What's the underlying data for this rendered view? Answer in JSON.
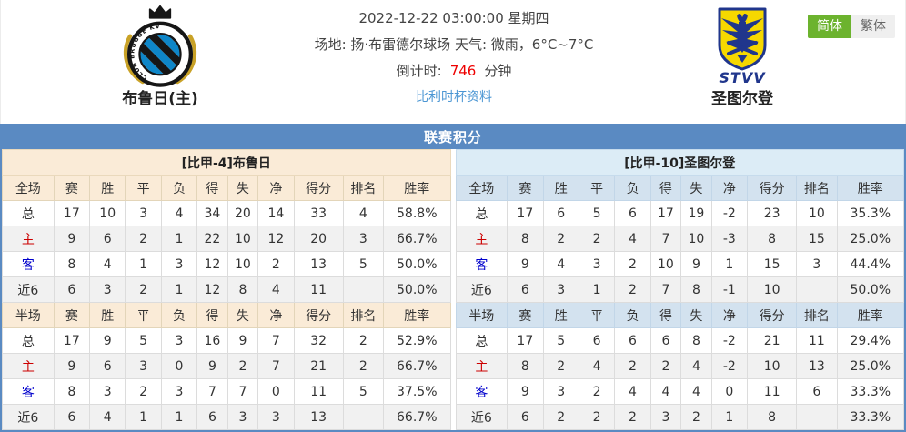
{
  "lang_switch": {
    "simplified": "简体",
    "traditional": "繁体"
  },
  "header": {
    "home": {
      "name": "布鲁日(主)"
    },
    "away": {
      "name": "圣图尔登"
    },
    "match_time": "2022-12-22 03:00:00 星期四",
    "venue_weather": "场地: 扬·布雷德尔球场 天气: 微雨，6°C~7°C",
    "countdown_label": "倒计时:",
    "countdown_value": "746",
    "countdown_unit": "分钟",
    "cup_link": "比利时杯资料"
  },
  "logos": {
    "home_ring_text": "CLUB BRUGGE KV",
    "away_wordmark": "STVV"
  },
  "colors": {
    "title_bar": "#5a8ac2",
    "home_header_bg": "#faebd7",
    "away_header_bg": "#d3e2ef",
    "home_label_red": "#cc0000",
    "away_label_blue": "#0000cc",
    "countdown_red": "#ee0000",
    "link_blue": "#4b96d3",
    "lang_active_green": "#6cb32e"
  },
  "section_title": "联赛积分",
  "columns_full": [
    "全场",
    "赛",
    "胜",
    "平",
    "负",
    "得",
    "失",
    "净",
    "得分",
    "排名",
    "胜率"
  ],
  "columns_half": [
    "半场",
    "赛",
    "胜",
    "平",
    "负",
    "得",
    "失",
    "净",
    "得分",
    "排名",
    "胜率"
  ],
  "teams": [
    {
      "title": "[比甲-4]布鲁日",
      "full": [
        {
          "label": "总",
          "type": "total",
          "cells": [
            "17",
            "10",
            "3",
            "4",
            "34",
            "20",
            "14",
            "33",
            "4",
            "58.8%"
          ]
        },
        {
          "label": "主",
          "type": "home",
          "cells": [
            "9",
            "6",
            "2",
            "1",
            "22",
            "10",
            "12",
            "20",
            "3",
            "66.7%"
          ]
        },
        {
          "label": "客",
          "type": "away",
          "cells": [
            "8",
            "4",
            "1",
            "3",
            "12",
            "10",
            "2",
            "13",
            "5",
            "50.0%"
          ]
        },
        {
          "label": "近6",
          "type": "last6",
          "cells": [
            "6",
            "3",
            "2",
            "1",
            "12",
            "8",
            "4",
            "11",
            "",
            "50.0%"
          ]
        }
      ],
      "half": [
        {
          "label": "总",
          "type": "total",
          "cells": [
            "17",
            "9",
            "5",
            "3",
            "16",
            "9",
            "7",
            "32",
            "2",
            "52.9%"
          ]
        },
        {
          "label": "主",
          "type": "home",
          "cells": [
            "9",
            "6",
            "3",
            "0",
            "9",
            "2",
            "7",
            "21",
            "2",
            "66.7%"
          ]
        },
        {
          "label": "客",
          "type": "away",
          "cells": [
            "8",
            "3",
            "2",
            "3",
            "7",
            "7",
            "0",
            "11",
            "5",
            "37.5%"
          ]
        },
        {
          "label": "近6",
          "type": "last6",
          "cells": [
            "6",
            "4",
            "1",
            "1",
            "6",
            "3",
            "3",
            "13",
            "",
            "66.7%"
          ]
        }
      ]
    },
    {
      "title": "[比甲-10]圣图尔登",
      "full": [
        {
          "label": "总",
          "type": "total",
          "cells": [
            "17",
            "6",
            "5",
            "6",
            "17",
            "19",
            "-2",
            "23",
            "10",
            "35.3%"
          ]
        },
        {
          "label": "主",
          "type": "home",
          "cells": [
            "8",
            "2",
            "2",
            "4",
            "7",
            "10",
            "-3",
            "8",
            "15",
            "25.0%"
          ]
        },
        {
          "label": "客",
          "type": "away",
          "cells": [
            "9",
            "4",
            "3",
            "2",
            "10",
            "9",
            "1",
            "15",
            "3",
            "44.4%"
          ]
        },
        {
          "label": "近6",
          "type": "last6",
          "cells": [
            "6",
            "3",
            "1",
            "2",
            "7",
            "8",
            "-1",
            "10",
            "",
            "50.0%"
          ]
        }
      ],
      "half": [
        {
          "label": "总",
          "type": "total",
          "cells": [
            "17",
            "5",
            "6",
            "6",
            "6",
            "8",
            "-2",
            "21",
            "11",
            "29.4%"
          ]
        },
        {
          "label": "主",
          "type": "home",
          "cells": [
            "8",
            "2",
            "4",
            "2",
            "2",
            "4",
            "-2",
            "10",
            "13",
            "25.0%"
          ]
        },
        {
          "label": "客",
          "type": "away",
          "cells": [
            "9",
            "3",
            "2",
            "4",
            "4",
            "4",
            "0",
            "11",
            "6",
            "33.3%"
          ]
        },
        {
          "label": "近6",
          "type": "last6",
          "cells": [
            "6",
            "2",
            "2",
            "2",
            "3",
            "2",
            "1",
            "8",
            "",
            "33.3%"
          ]
        }
      ]
    }
  ]
}
